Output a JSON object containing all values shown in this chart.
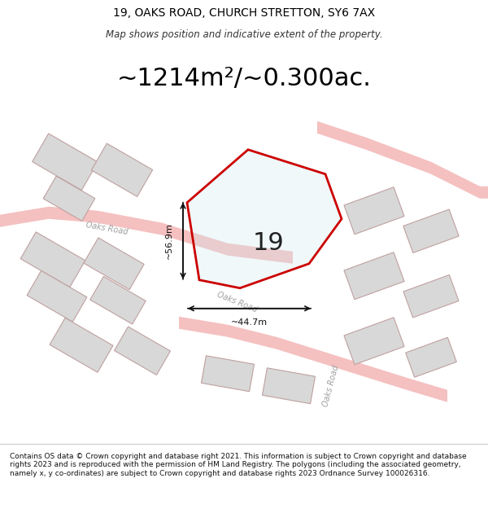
{
  "title_line1": "19, OAKS ROAD, CHURCH STRETTON, SY6 7AX",
  "title_line2": "Map shows position and indicative extent of the property.",
  "area_text": "~1214m²/~0.300ac.",
  "property_number": "19",
  "dim_vertical": "~56.9m",
  "dim_horizontal": "~44.7m",
  "footer_text": "Contains OS data © Crown copyright and database right 2021. This information is subject to Crown copyright and database rights 2023 and is reproduced with the permission of HM Land Registry. The polygons (including the associated geometry, namely x, y co-ordinates) are subject to Crown copyright and database rights 2023 Ordnance Survey 100026316.",
  "bg_color": "#ffffff",
  "map_bg": "#f5f5f5",
  "road_color_light": "#f5c0c0",
  "road_color_dark": "#e08080",
  "building_color": "#d8d8d8",
  "building_edge": "#c0a0a0",
  "road_line_color": "#c8c8c8",
  "plot_color": "#cc0000",
  "plot_fill": "none",
  "dim_color": "#111111",
  "road_label_color": "#a0a0a0"
}
